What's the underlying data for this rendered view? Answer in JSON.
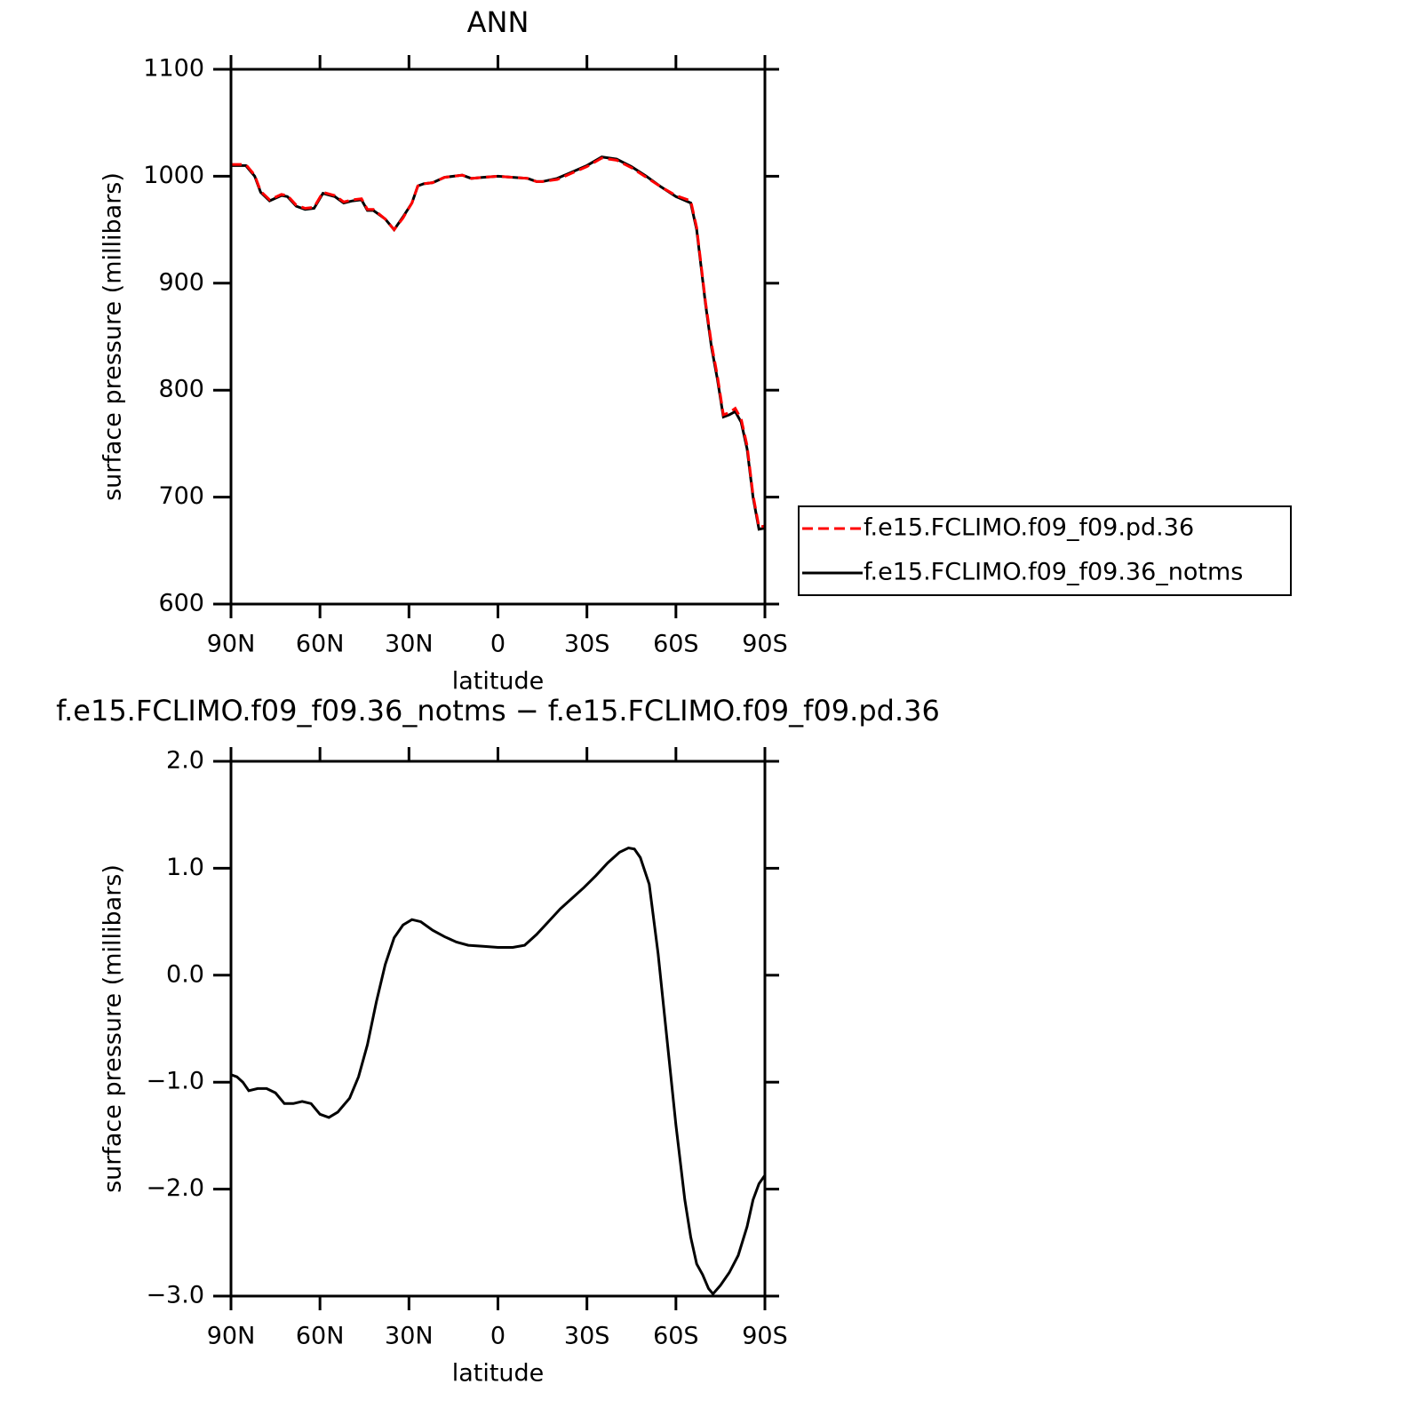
{
  "chart_data": [
    {
      "type": "line",
      "title": "ANN",
      "x_label": "latitude",
      "y_label": "surface pressure (millibars)",
      "x": [
        90,
        85,
        82,
        80,
        77,
        73,
        71,
        68,
        65,
        62,
        59,
        55,
        52,
        49,
        46,
        44,
        42,
        38,
        35,
        32,
        29,
        27,
        25,
        22,
        18,
        15,
        12,
        9,
        5,
        0,
        -5,
        -10,
        -13,
        -15,
        -20,
        -25,
        -30,
        -35,
        -40,
        -45,
        -50,
        -55,
        -60,
        -65,
        -67,
        -70,
        -72,
        -74,
        -76,
        -78,
        -80,
        -82,
        -84,
        -86,
        -88,
        -90
      ],
      "series": [
        {
          "name": "f.e15.FCLIMO.f09_f09.pd.36",
          "color": "#ff0000",
          "dashed": true,
          "values": [
            1011,
            1011,
            1001,
            986,
            978,
            983,
            982,
            973,
            970,
            971,
            985,
            982,
            976,
            978,
            979,
            969,
            969,
            960,
            950,
            961,
            975,
            991,
            993,
            994,
            999,
            1000,
            1001,
            998,
            999,
            1000,
            999,
            998,
            995,
            995,
            997,
            1003,
            1009,
            1017,
            1015,
            1008,
            999,
            990,
            982,
            977,
            952,
            882,
            843,
            813,
            777,
            779,
            783,
            773,
            748,
            702,
            672,
            673
          ]
        },
        {
          "name": "f.e15.FCLIMO.f09_f09.36_notms",
          "color": "#000000",
          "dashed": false,
          "values": [
            1010,
            1010,
            1000,
            985,
            977,
            982,
            981,
            972,
            969,
            970,
            984,
            981,
            975,
            977,
            978,
            968,
            968,
            960,
            950,
            962,
            975,
            991,
            993,
            994,
            999,
            1000,
            1001,
            998,
            999,
            1000,
            999,
            998,
            995,
            995,
            998,
            1004,
            1010,
            1018,
            1016,
            1009,
            1000,
            990,
            981,
            975,
            950,
            880,
            840,
            810,
            775,
            777,
            780,
            770,
            745,
            700,
            670,
            671
          ]
        }
      ],
      "xlim": [
        90,
        -90
      ],
      "xticks": [
        {
          "value": 90,
          "label": "90N"
        },
        {
          "value": 60,
          "label": "60N"
        },
        {
          "value": 30,
          "label": "30N"
        },
        0,
        {
          "value": -30,
          "label": "30S"
        },
        {
          "value": -60,
          "label": "60S"
        },
        {
          "value": -90,
          "label": "90S"
        }
      ],
      "ylim": [
        600,
        1100
      ],
      "yticks": [
        600,
        700,
        800,
        900,
        1000,
        1100
      ],
      "legend": "right"
    },
    {
      "type": "line",
      "title": "f.e15.FCLIMO.f09_f09.36_notms − f.e15.FCLIMO.f09_f09.pd.36",
      "x_label": "latitude",
      "y_label": "surface pressure (millibars)",
      "x": [
        90,
        88,
        86,
        84,
        81,
        78,
        75,
        72,
        69,
        66,
        63,
        60,
        57,
        54,
        50,
        47,
        44,
        41,
        38,
        35,
        32,
        29,
        26,
        22,
        18,
        14,
        10,
        5,
        0,
        -5,
        -9,
        -13,
        -17,
        -21,
        -25,
        -29,
        -33,
        -37,
        -41,
        -44,
        -46,
        -48,
        -51,
        -54,
        -57,
        -60,
        -63,
        -65,
        -67,
        -69,
        -71,
        -72.5,
        -75,
        -78,
        -81,
        -84,
        -86,
        -88,
        -90
      ],
      "values": [
        -0.93,
        -0.95,
        -1.0,
        -1.08,
        -1.06,
        -1.06,
        -1.1,
        -1.2,
        -1.2,
        -1.18,
        -1.2,
        -1.3,
        -1.33,
        -1.28,
        -1.15,
        -0.95,
        -0.65,
        -0.25,
        0.1,
        0.35,
        0.47,
        0.52,
        0.5,
        0.42,
        0.36,
        0.31,
        0.28,
        0.27,
        0.26,
        0.26,
        0.28,
        0.38,
        0.5,
        0.62,
        0.72,
        0.82,
        0.93,
        1.05,
        1.15,
        1.19,
        1.18,
        1.1,
        0.85,
        0.2,
        -0.6,
        -1.4,
        -2.1,
        -2.45,
        -2.7,
        -2.8,
        -2.93,
        -2.98,
        -2.9,
        -2.78,
        -2.62,
        -2.35,
        -2.1,
        -1.95,
        -1.87
      ],
      "color": "#000000",
      "xlim": [
        90,
        -90
      ],
      "xticks": [
        {
          "value": 90,
          "label": "90N"
        },
        {
          "value": 60,
          "label": "60N"
        },
        {
          "value": 30,
          "label": "30N"
        },
        0,
        {
          "value": -30,
          "label": "30S"
        },
        {
          "value": -60,
          "label": "60S"
        },
        {
          "value": -90,
          "label": "90S"
        }
      ],
      "ylim": [
        -3,
        2
      ],
      "yticks": [
        {
          "value": -3,
          "label": "−3.0"
        },
        {
          "value": -2,
          "label": "−2.0"
        },
        {
          "value": -1,
          "label": "−1.0"
        },
        {
          "value": 0,
          "label": "0.0"
        },
        {
          "value": 1,
          "label": "1.0"
        },
        {
          "value": 2,
          "label": "2.0"
        }
      ]
    }
  ]
}
